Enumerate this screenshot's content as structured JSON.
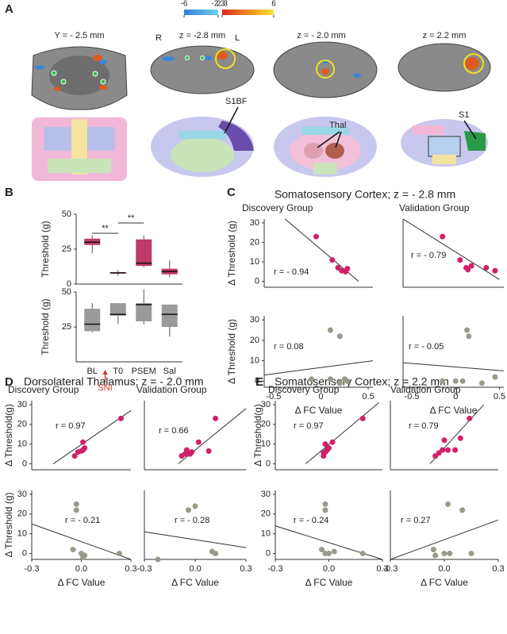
{
  "panel_labels": [
    "A",
    "B",
    "C",
    "D",
    "E"
  ],
  "panel_a": {
    "colorbar_ticks": [
      -6,
      -2.3,
      2.3,
      6
    ],
    "slices": [
      "Y = - 2.5 mm",
      "z = -2.8 mm",
      "z = - 2.0  mm",
      "z = 2.2 mm"
    ],
    "orientation": [
      "R",
      "L"
    ],
    "regions": [
      "S1BF",
      "Thal",
      "S1"
    ]
  },
  "panel_titles": {
    "C": "Somatosensory Cortex; z = - 2.8 mm",
    "D": "Dorsolateral Thalamus; z = - 2.0 mm",
    "E": "Somatosensory Cortex; z = 2.2 mm"
  },
  "chart_data": [
    {
      "type": "box",
      "ylabel": "Threshold (g)",
      "color": "#c0396b",
      "ylim": [
        0,
        50
      ],
      "yticks": [
        0,
        25,
        50
      ],
      "categories": [
        null,
        null,
        null,
        null
      ],
      "boxes": [
        {
          "min": 22,
          "q1": 28,
          "median": 30,
          "q3": 32.5,
          "max": 35
        },
        {
          "min": 6,
          "q1": 7.5,
          "median": 8,
          "q3": 8.5,
          "max": 10
        },
        {
          "min": 12,
          "q1": 13,
          "median": 15,
          "q3": 32,
          "max": 35
        },
        {
          "min": 5,
          "q1": 7,
          "median": 9,
          "q3": 11,
          "max": 17
        }
      ],
      "annotations": [
        "**",
        "**"
      ]
    },
    {
      "type": "box",
      "ylabel": "Threshold (g)",
      "color": "#9a9a9a",
      "ylim": [
        0,
        50
      ],
      "yticks": [
        25,
        50
      ],
      "categories": [
        "BL",
        "T0",
        "PSEM",
        "Sal"
      ],
      "boxes": [
        {
          "min": 21,
          "q1": 22,
          "median": 27,
          "q3": 38,
          "max": 42
        },
        {
          "min": 27,
          "q1": 33,
          "median": 34,
          "q3": 42,
          "max": 42
        },
        {
          "min": 27,
          "q1": 29,
          "median": 41,
          "q3": 42,
          "max": 52
        },
        {
          "min": 18,
          "q1": 25,
          "median": 34,
          "q3": 41,
          "max": 41
        }
      ],
      "annotations": [
        "SNI"
      ]
    },
    {
      "type": "scatter",
      "title": "Discovery Group",
      "ylabel": "Δ Threshold (g)",
      "color": "#d0206a",
      "xlim": [
        -0.6,
        0.55
      ],
      "ylim": [
        -3,
        32
      ],
      "yticks": [
        0,
        10,
        20,
        30
      ],
      "x": [
        -0.05,
        0.12,
        0.18,
        0.22,
        0.28,
        0.26
      ],
      "values": [
        23,
        11,
        7,
        5.5,
        6.5,
        5
      ],
      "trend_line": {
        "x": [
          -0.38,
          0.4
        ],
        "y": [
          32,
          0
        ]
      },
      "annotation": "r = - 0.94"
    },
    {
      "type": "scatter",
      "title": "Validation Group",
      "color": "#d0206a",
      "xlim": [
        -0.6,
        0.55
      ],
      "ylim": [
        -3,
        32
      ],
      "x": [
        -0.15,
        0.05,
        0.12,
        0.14,
        0.18,
        0.35,
        0.45
      ],
      "values": [
        23,
        11,
        7,
        6,
        8,
        7,
        5.5
      ],
      "trend_line": {
        "x": [
          -0.6,
          0.5
        ],
        "y": [
          32,
          1
        ]
      },
      "annotation": "r = - 0.79"
    },
    {
      "type": "scatter",
      "ylabel": "Δ Threshold (g)",
      "xlabel": "Δ  FC Value",
      "color": "#9a9a8a",
      "xlim": [
        -0.6,
        0.55
      ],
      "ylim": [
        -3,
        32
      ],
      "yticks": [
        0,
        10,
        20,
        30
      ],
      "xticks": [
        -0.5,
        0,
        0.5
      ],
      "x": [
        -0.1,
        0.1,
        0.2,
        0.1,
        0.2,
        0.25,
        0.28
      ],
      "values": [
        1,
        25,
        22,
        1,
        -1,
        1,
        0
      ],
      "trend_line": {
        "x": [
          -0.6,
          0.55
        ],
        "y": [
          3,
          10
        ]
      },
      "annotation": "r = 0.08"
    },
    {
      "type": "scatter",
      "xlabel": "Δ  FC Value",
      "color": "#9a9a8a",
      "xlim": [
        -0.6,
        0.55
      ],
      "ylim": [
        -3,
        32
      ],
      "xticks": [
        -0.5,
        0,
        0.5
      ],
      "x": [
        -0.15,
        0,
        0.08,
        0.13,
        0.15,
        0.3,
        0.45
      ],
      "values": [
        0,
        0,
        0,
        25,
        22,
        -1,
        2
      ],
      "trend_line": {
        "x": [
          -0.6,
          0.55
        ],
        "y": [
          9,
          5
        ]
      },
      "annotation": "r = - 0.05"
    },
    {
      "type": "scatter",
      "title": "Discovery  Group",
      "ylabel": "Δ Threshold(g)",
      "color": "#d0206a",
      "xlim": [
        -0.3,
        0.3
      ],
      "ylim": [
        -3,
        32
      ],
      "yticks": [
        0,
        10,
        20,
        30
      ],
      "x": [
        -0.04,
        -0.02,
        0,
        0.01,
        0.02,
        0.01,
        0.24
      ],
      "values": [
        4,
        6,
        6.5,
        7,
        8,
        11,
        23
      ],
      "trend_line": {
        "x": [
          -0.17,
          0.3
        ],
        "y": [
          0,
          27
        ]
      },
      "annotation": "r = 0.97"
    },
    {
      "type": "scatter",
      "title": "Validation Group",
      "color": "#d0206a",
      "xlim": [
        -0.3,
        0.3
      ],
      "ylim": [
        -3,
        32
      ],
      "x": [
        -0.08,
        -0.06,
        -0.05,
        -0.02,
        0.02,
        0.08,
        0.12,
        -0.03
      ],
      "values": [
        4,
        5,
        7,
        6,
        11,
        6.5,
        23,
        5
      ],
      "trend_line": {
        "x": [
          -0.1,
          0.3
        ],
        "y": [
          0,
          28
        ]
      },
      "annotation": "r = 0.66"
    },
    {
      "type": "scatter",
      "ylabel": "Δ Threshold (g)",
      "xlabel": "Δ  FC Value",
      "color": "#9a9a8a",
      "xlim": [
        -0.3,
        0.3
      ],
      "ylim": [
        -3,
        32
      ],
      "yticks": [
        0,
        10,
        20,
        30
      ],
      "xticks": [
        -0.3,
        {
          "value": 0,
          "label": "0.0"
        },
        0.3
      ],
      "x": [
        -0.03,
        -0.03,
        -0.05,
        0,
        0.02,
        0.01,
        0.23
      ],
      "values": [
        25,
        22,
        2,
        0,
        -1,
        -2,
        0
      ],
      "trend_line": {
        "x": [
          -0.3,
          0.3
        ],
        "y": [
          15,
          -3
        ]
      },
      "annotation": "r = - 0.21"
    },
    {
      "type": "scatter",
      "xlabel": "Δ  FC Value",
      "color": "#9a9a8a",
      "xlim": [
        -0.3,
        0.3
      ],
      "ylim": [
        -3,
        32
      ],
      "xticks": [
        -0.3,
        {
          "value": 0,
          "label": "0.0"
        },
        0.3
      ],
      "x": [
        -0.22,
        -0.04,
        0,
        0.1,
        0.12
      ],
      "values": [
        -3,
        22,
        24,
        1,
        0
      ],
      "trend_line": {
        "x": [
          -0.3,
          0.3
        ],
        "y": [
          11,
          3
        ]
      },
      "annotation": "r = - 0.28"
    },
    {
      "type": "scatter",
      "title": "Discovery Group",
      "ylabel": "Δ Threshold(g)",
      "color": "#d0206a",
      "xlim": [
        -0.3,
        0.3
      ],
      "ylim": [
        -3,
        32
      ],
      "yticks": [
        0,
        10,
        20,
        30
      ],
      "x": [
        -0.03,
        -0.03,
        -0.02,
        -0.01,
        0,
        -0.02,
        0.02,
        0.19
      ],
      "values": [
        4,
        5.5,
        6,
        7,
        8,
        10,
        11,
        23
      ],
      "trend_line": {
        "x": [
          -0.13,
          0.28
        ],
        "y": [
          0,
          31
        ]
      },
      "annotation": "r = 0.97"
    },
    {
      "type": "scatter",
      "title": "Validation Group",
      "color": "#d0206a",
      "xlim": [
        -0.3,
        0.3
      ],
      "ylim": [
        -3,
        32
      ],
      "x": [
        -0.05,
        -0.03,
        -0.01,
        0.02,
        0,
        0.06,
        0.09,
        0.14
      ],
      "values": [
        4,
        5.5,
        7,
        7,
        12,
        7,
        13,
        23
      ],
      "trend_line": {
        "x": [
          -0.08,
          0.22
        ],
        "y": [
          0,
          30
        ]
      },
      "annotation": "r = 0.79"
    },
    {
      "type": "scatter",
      "xlabel": "Δ  FC Value",
      "color": "#9a9a8a",
      "xlim": [
        -0.3,
        0.3
      ],
      "ylim": [
        -3,
        32
      ],
      "yticks": [
        0,
        10,
        20,
        30
      ],
      "xticks": [
        -0.3,
        {
          "value": 0,
          "label": "0.0"
        },
        0.3
      ],
      "x": [
        -0.02,
        -0.02,
        -0.04,
        0,
        0.03,
        0.19,
        -0.02
      ],
      "values": [
        25,
        22,
        2,
        0,
        1,
        0,
        0
      ],
      "trend_line": {
        "x": [
          -0.3,
          0.3
        ],
        "y": [
          14,
          -3
        ]
      },
      "annotation": "r = - 0.24"
    },
    {
      "type": "scatter",
      "xlabel": "Δ  FC Value",
      "color": "#9a9a8a",
      "xlim": [
        -0.3,
        0.3
      ],
      "ylim": [
        -3,
        32
      ],
      "xticks": [
        -0.3,
        {
          "value": 0,
          "label": "0.0"
        },
        0.3
      ],
      "x": [
        0.02,
        0.1,
        -0.06,
        -0.05,
        0,
        0.03,
        0.15
      ],
      "values": [
        25,
        22,
        2,
        -1,
        0,
        0,
        0
      ],
      "trend_line": {
        "x": [
          -0.3,
          0.3
        ],
        "y": [
          -3,
          17
        ]
      },
      "annotation": "r = 0.27"
    }
  ]
}
